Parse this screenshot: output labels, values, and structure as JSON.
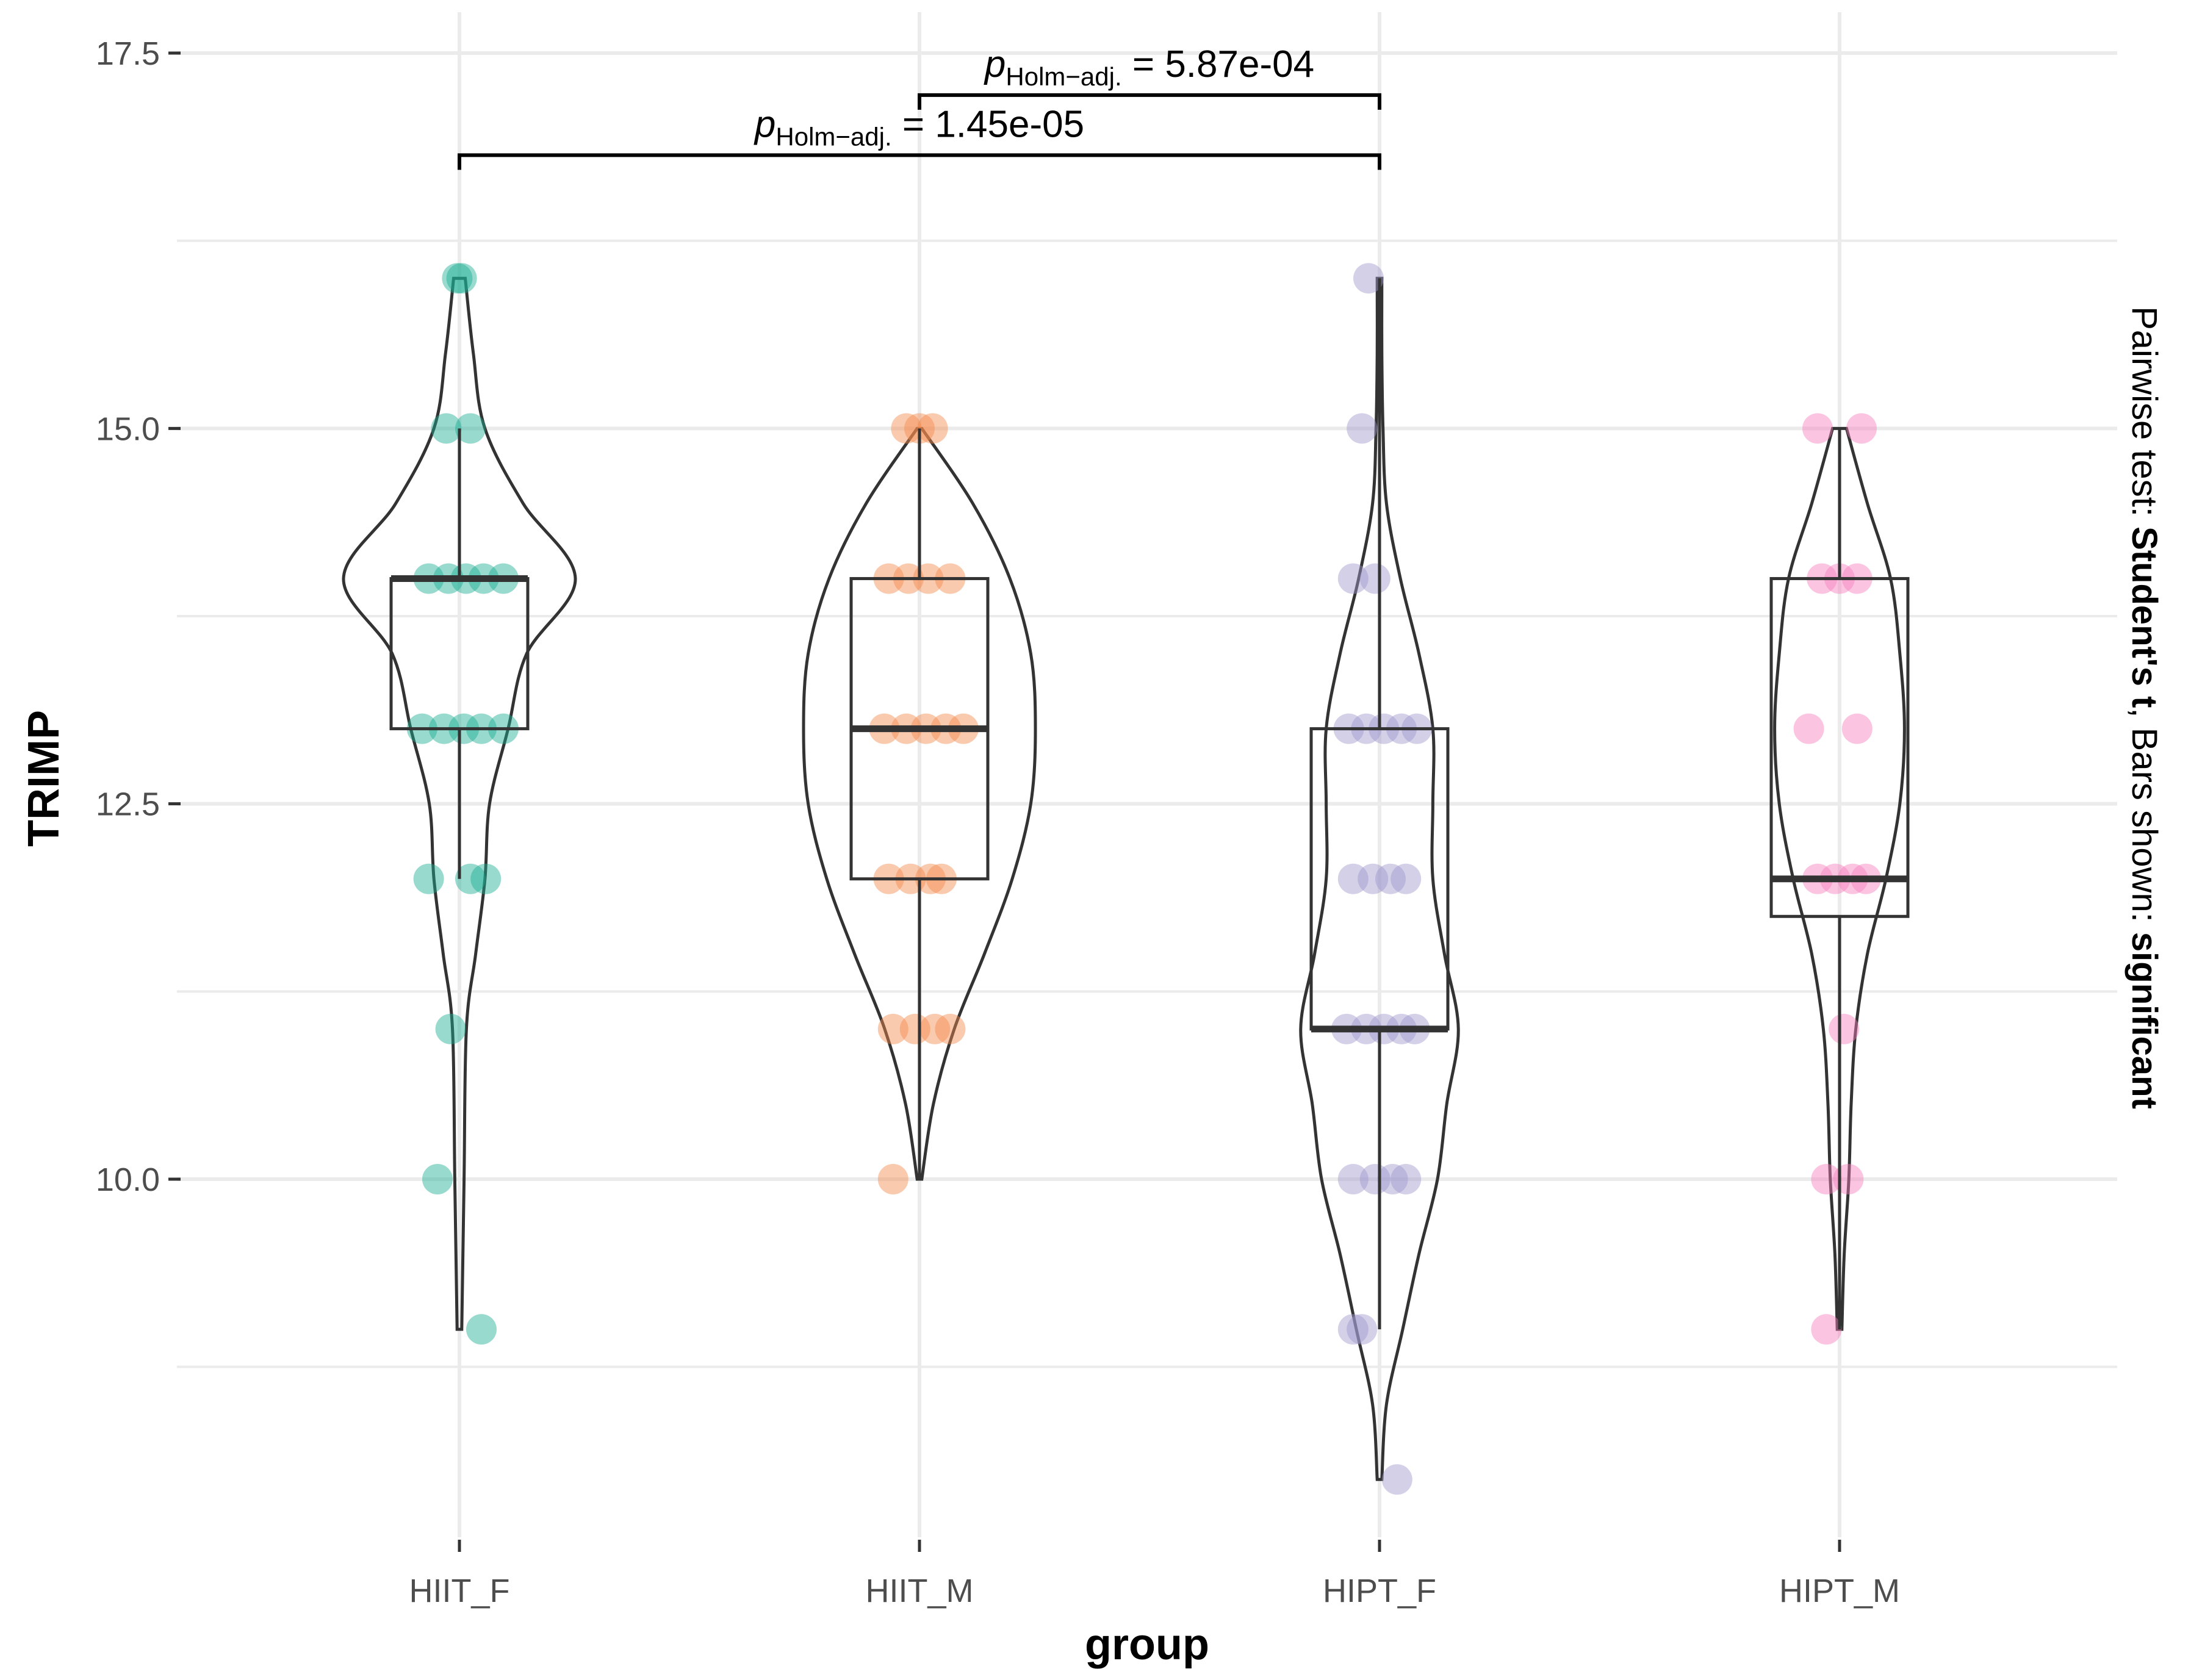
{
  "chart_data": {
    "type": "violin-box-scatter",
    "xlabel": "group",
    "ylabel": "TRIMP",
    "ylim": [
      8.0,
      17.6
    ],
    "yticks": [
      10.0,
      12.5,
      15.0,
      17.5
    ],
    "ytick_labels": [
      "10.0",
      "12.5",
      "15.0",
      "17.5"
    ],
    "grid": true,
    "categories": [
      "HIIT_F",
      "HIIT_M",
      "HIPT_F",
      "HIPT_M"
    ],
    "side_caption": {
      "prefix": "Pairwise test: ",
      "test": "Student's t",
      "middle": ", Bars shown: ",
      "bars": "significant"
    },
    "groups": [
      {
        "name": "HIIT_F",
        "color": "#1AAE93",
        "box": {
          "q1": 13.0,
          "median": 14.0,
          "q3": 14.0,
          "whisker_low": 12.0,
          "whisker_high": 15.0
        },
        "violin": [
          [
            9.0,
            0.02
          ],
          [
            10.0,
            0.04
          ],
          [
            11.0,
            0.06
          ],
          [
            11.5,
            0.14
          ],
          [
            12.0,
            0.22
          ],
          [
            12.5,
            0.26
          ],
          [
            13.0,
            0.42
          ],
          [
            13.5,
            0.58
          ],
          [
            14.0,
            1.0
          ],
          [
            14.5,
            0.55
          ],
          [
            15.0,
            0.22
          ],
          [
            15.5,
            0.12
          ],
          [
            16.0,
            0.05
          ]
        ],
        "points": [
          [
            16.0,
            -0.01
          ],
          [
            16.0,
            0.01
          ],
          [
            15.0,
            -0.06
          ],
          [
            15.0,
            0.05
          ],
          [
            14.0,
            -0.14
          ],
          [
            14.0,
            -0.05
          ],
          [
            14.0,
            0.03
          ],
          [
            14.0,
            0.11
          ],
          [
            14.0,
            0.2
          ],
          [
            13.0,
            -0.17
          ],
          [
            13.0,
            -0.07
          ],
          [
            13.0,
            0.02
          ],
          [
            13.0,
            0.1
          ],
          [
            13.0,
            0.2
          ],
          [
            12.0,
            -0.14
          ],
          [
            12.0,
            0.05
          ],
          [
            12.0,
            0.12
          ],
          [
            11.0,
            -0.04
          ],
          [
            10.0,
            -0.1
          ],
          [
            9.0,
            0.1
          ]
        ]
      },
      {
        "name": "HIIT_M",
        "color": "#F58A4B",
        "box": {
          "q1": 12.0,
          "median": 13.0,
          "q3": 14.0,
          "whisker_low": 10.0,
          "whisker_high": 15.0
        },
        "violin": [
          [
            10.0,
            0.02
          ],
          [
            10.5,
            0.12
          ],
          [
            11.0,
            0.3
          ],
          [
            11.5,
            0.56
          ],
          [
            12.0,
            0.8
          ],
          [
            12.5,
            0.96
          ],
          [
            13.0,
            1.0
          ],
          [
            13.5,
            0.96
          ],
          [
            14.0,
            0.78
          ],
          [
            14.5,
            0.46
          ],
          [
            15.0,
            0.02
          ]
        ],
        "points": [
          [
            15.0,
            -0.06
          ],
          [
            15.0,
            0.0
          ],
          [
            15.0,
            0.06
          ],
          [
            14.0,
            -0.14
          ],
          [
            14.0,
            -0.05
          ],
          [
            14.0,
            0.04
          ],
          [
            14.0,
            0.14
          ],
          [
            13.0,
            -0.16
          ],
          [
            13.0,
            -0.06
          ],
          [
            13.0,
            0.03
          ],
          [
            13.0,
            0.12
          ],
          [
            13.0,
            0.2
          ],
          [
            12.0,
            -0.14
          ],
          [
            12.0,
            -0.04
          ],
          [
            12.0,
            0.05
          ],
          [
            12.0,
            0.1
          ],
          [
            11.0,
            -0.12
          ],
          [
            11.0,
            -0.02
          ],
          [
            11.0,
            0.07
          ],
          [
            11.0,
            0.14
          ],
          [
            10.0,
            -0.12
          ]
        ]
      },
      {
        "name": "HIPT_F",
        "color": "#9E96CC",
        "box": {
          "q1": 11.0,
          "median": 11.0,
          "q3": 13.0,
          "whisker_low": 9.0,
          "whisker_high": 16.0
        },
        "violin": [
          [
            8.0,
            0.02
          ],
          [
            8.5,
            0.06
          ],
          [
            9.0,
            0.2
          ],
          [
            9.5,
            0.34
          ],
          [
            10.0,
            0.5
          ],
          [
            10.5,
            0.58
          ],
          [
            11.0,
            0.68
          ],
          [
            11.5,
            0.56
          ],
          [
            12.0,
            0.46
          ],
          [
            12.5,
            0.46
          ],
          [
            13.0,
            0.46
          ],
          [
            13.5,
            0.34
          ],
          [
            14.0,
            0.18
          ],
          [
            14.5,
            0.06
          ],
          [
            15.0,
            0.03
          ],
          [
            15.5,
            0.02
          ],
          [
            16.0,
            0.02
          ]
        ],
        "points": [
          [
            16.0,
            -0.05
          ],
          [
            15.0,
            -0.08
          ],
          [
            14.0,
            -0.12
          ],
          [
            14.0,
            -0.02
          ],
          [
            13.0,
            -0.14
          ],
          [
            13.0,
            -0.06
          ],
          [
            13.0,
            0.02
          ],
          [
            13.0,
            0.1
          ],
          [
            13.0,
            0.17
          ],
          [
            12.0,
            -0.12
          ],
          [
            12.0,
            -0.03
          ],
          [
            12.0,
            0.05
          ],
          [
            12.0,
            0.12
          ],
          [
            11.0,
            -0.15
          ],
          [
            11.0,
            -0.06
          ],
          [
            11.0,
            0.02
          ],
          [
            11.0,
            0.1
          ],
          [
            11.0,
            0.16
          ],
          [
            10.0,
            -0.12
          ],
          [
            10.0,
            -0.02
          ],
          [
            10.0,
            0.06
          ],
          [
            10.0,
            0.12
          ],
          [
            9.0,
            -0.12
          ],
          [
            9.0,
            -0.08
          ],
          [
            8.0,
            0.08
          ]
        ]
      },
      {
        "name": "HIPT_M",
        "color": "#F77FBE",
        "box": {
          "q1": 11.75,
          "median": 12.0,
          "q3": 14.0,
          "whisker_low": 9.0,
          "whisker_high": 15.0
        },
        "violin": [
          [
            9.0,
            0.02
          ],
          [
            9.5,
            0.04
          ],
          [
            10.0,
            0.08
          ],
          [
            10.5,
            0.1
          ],
          [
            11.0,
            0.14
          ],
          [
            11.5,
            0.24
          ],
          [
            12.0,
            0.4
          ],
          [
            12.5,
            0.52
          ],
          [
            13.0,
            0.56
          ],
          [
            13.5,
            0.52
          ],
          [
            14.0,
            0.44
          ],
          [
            14.5,
            0.24
          ],
          [
            15.0,
            0.06
          ]
        ],
        "points": [
          [
            15.0,
            -0.1
          ],
          [
            15.0,
            0.1
          ],
          [
            14.0,
            -0.08
          ],
          [
            14.0,
            0.0
          ],
          [
            14.0,
            0.08
          ],
          [
            13.0,
            -0.14
          ],
          [
            13.0,
            0.08
          ],
          [
            12.0,
            -0.1
          ],
          [
            12.0,
            -0.02
          ],
          [
            12.0,
            0.06
          ],
          [
            12.0,
            0.12
          ],
          [
            11.0,
            0.02
          ],
          [
            10.0,
            -0.06
          ],
          [
            10.0,
            0.04
          ],
          [
            9.0,
            -0.06
          ]
        ]
      }
    ],
    "comparisons": [
      {
        "from": "HIIT_F",
        "to": "HIPT_F",
        "y": 16.82,
        "label_prefix": "p",
        "label_sub": "Holm−adj.",
        "label_value": " = 1.45e-05"
      },
      {
        "from": "HIIT_M",
        "to": "HIPT_F",
        "y": 17.22,
        "label_prefix": "p",
        "label_sub": "Holm−adj.",
        "label_value": " = 5.87e-04"
      }
    ]
  }
}
